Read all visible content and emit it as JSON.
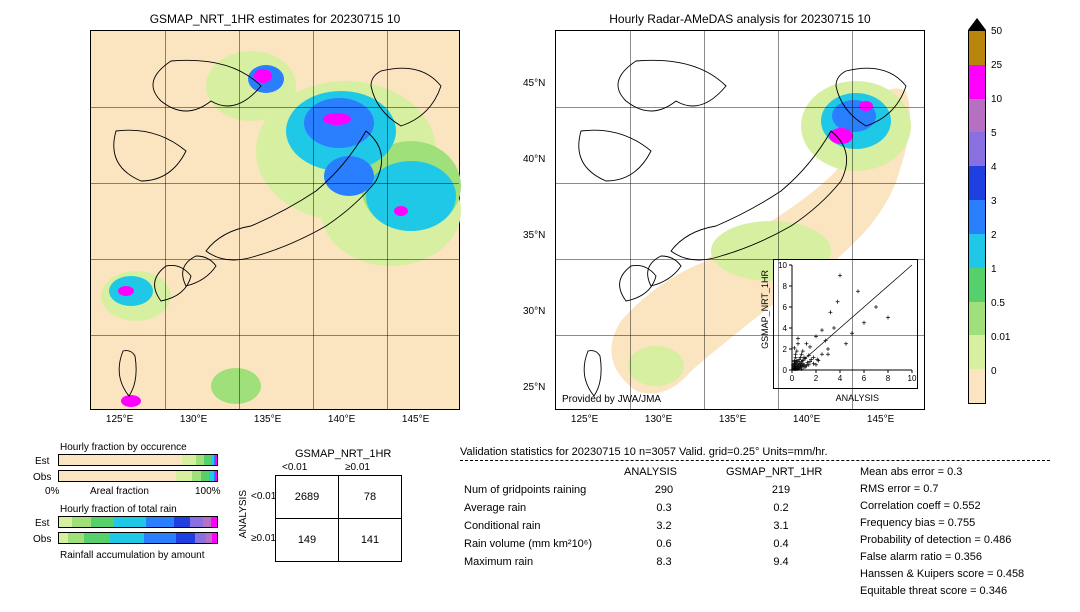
{
  "date": "20230715 10",
  "left_title": "GSMAP_NRT_1HR estimates for 20230715 10",
  "right_title": "Hourly Radar-AMeDAS analysis for 20230715 10",
  "provided_by": "Provided by JWA/JMA",
  "map": {
    "lat_ticks": [
      "25°N",
      "30°N",
      "35°N",
      "40°N",
      "45°N"
    ],
    "lon_ticks": [
      "125°E",
      "130°E",
      "135°E",
      "140°E",
      "145°E"
    ],
    "bg_color": "#fae5c0",
    "grid_color": "#606060"
  },
  "colorbar": {
    "segments": [
      {
        "color": "#b8860b",
        "h": 34
      },
      {
        "color": "#ff00ff",
        "h": 34
      },
      {
        "color": "#b76fc1",
        "h": 34
      },
      {
        "color": "#8a6fe0",
        "h": 34
      },
      {
        "color": "#1f3fe0",
        "h": 34
      },
      {
        "color": "#2a7fff",
        "h": 34
      },
      {
        "color": "#20c8e8",
        "h": 34
      },
      {
        "color": "#55d06a",
        "h": 34
      },
      {
        "color": "#9fe07a",
        "h": 34
      },
      {
        "color": "#d7efa0",
        "h": 34
      },
      {
        "color": "#fae5c0",
        "h": 34
      }
    ],
    "ticks": [
      "50",
      "25",
      "10",
      "5",
      "4",
      "3",
      "2",
      "1",
      "0.5",
      "0.01",
      "0"
    ],
    "arrow_top_color": "#000000"
  },
  "scatter": {
    "xlabel": "ANALYSIS",
    "ylabel": "GSMAP_NRT_1HR",
    "ticks": [
      "0",
      "2",
      "4",
      "6",
      "8",
      "10"
    ],
    "max": 10,
    "points": [
      [
        0.1,
        0.1
      ],
      [
        0.2,
        0.3
      ],
      [
        0.3,
        0.1
      ],
      [
        0.1,
        0.5
      ],
      [
        0.5,
        0.2
      ],
      [
        0.2,
        0.9
      ],
      [
        0.9,
        0.4
      ],
      [
        0.4,
        0.2
      ],
      [
        0.6,
        0.6
      ],
      [
        0.8,
        0.1
      ],
      [
        0.3,
        1.5
      ],
      [
        1.0,
        0.3
      ],
      [
        0.2,
        2.1
      ],
      [
        1.4,
        0.5
      ],
      [
        0.5,
        0.8
      ],
      [
        0.1,
        0.2
      ],
      [
        0.7,
        0.3
      ],
      [
        0.2,
        0.1
      ],
      [
        0.9,
        0.9
      ],
      [
        1.2,
        0.4
      ],
      [
        0.4,
        1.8
      ],
      [
        1.8,
        0.6
      ],
      [
        0.6,
        0.4
      ],
      [
        2.1,
        1.0
      ],
      [
        0.3,
        0.2
      ],
      [
        0.8,
        1.5
      ],
      [
        1.5,
        0.8
      ],
      [
        0.2,
        0.4
      ],
      [
        0.5,
        0.1
      ],
      [
        1.0,
        1.2
      ],
      [
        1.2,
        2.5
      ],
      [
        2.5,
        1.5
      ],
      [
        0.4,
        0.6
      ],
      [
        0.6,
        0.2
      ],
      [
        3.0,
        2.0
      ],
      [
        2.0,
        3.2
      ],
      [
        0.7,
        0.5
      ],
      [
        0.3,
        0.7
      ],
      [
        4.0,
        9.0
      ],
      [
        1.8,
        1.2
      ],
      [
        0.5,
        3.0
      ],
      [
        3.5,
        4.0
      ],
      [
        0.2,
        0.8
      ],
      [
        0.9,
        0.6
      ],
      [
        5.0,
        3.5
      ],
      [
        1.5,
        2.2
      ],
      [
        2.2,
        0.9
      ],
      [
        0.4,
        0.3
      ],
      [
        6.0,
        4.5
      ],
      [
        3.0,
        1.5
      ],
      [
        0.8,
        0.4
      ],
      [
        1.0,
        0.5
      ],
      [
        7.0,
        6.0
      ],
      [
        0.6,
        1.0
      ],
      [
        8.0,
        5.0
      ],
      [
        1.3,
        0.7
      ],
      [
        0.3,
        0.5
      ],
      [
        2.8,
        2.8
      ],
      [
        0.7,
        1.2
      ],
      [
        4.5,
        2.5
      ],
      [
        0.2,
        0.6
      ],
      [
        1.6,
        1.0
      ],
      [
        0.5,
        0.4
      ],
      [
        3.2,
        5.5
      ],
      [
        0.9,
        1.8
      ],
      [
        2.0,
        0.5
      ],
      [
        0.4,
        0.9
      ],
      [
        5.5,
        7.5
      ],
      [
        1.1,
        0.3
      ],
      [
        0.3,
        1.2
      ],
      [
        0.1,
        0.4
      ],
      [
        0.4,
        0.1
      ],
      [
        0.6,
        0.3
      ],
      [
        0.2,
        0.2
      ],
      [
        0.8,
        0.8
      ],
      [
        1.1,
        1.1
      ],
      [
        1.4,
        1.4
      ],
      [
        2.5,
        3.8
      ],
      [
        0.5,
        2.5
      ],
      [
        3.8,
        6.5
      ]
    ]
  },
  "fraction_bars": {
    "occurrence_title": "Hourly fraction by occurence",
    "totalrain_title": "Hourly fraction of total rain",
    "accum_title": "Rainfall accumulation by amount",
    "areal_label_left": "0%",
    "areal_label_right": "100%",
    "areal_label_center": "Areal fraction",
    "est_label": "Est",
    "obs_label": "Obs",
    "occurrence_est": [
      {
        "color": "#fae5c0",
        "w": 78
      },
      {
        "color": "#d7efa0",
        "w": 9
      },
      {
        "color": "#9fe07a",
        "w": 5
      },
      {
        "color": "#55d06a",
        "w": 4
      },
      {
        "color": "#20c8e8",
        "w": 2
      },
      {
        "color": "#2a7fff",
        "w": 1
      },
      {
        "color": "#ff00ff",
        "w": 1
      }
    ],
    "occurrence_obs": [
      {
        "color": "#fae5c0",
        "w": 74
      },
      {
        "color": "#d7efa0",
        "w": 10
      },
      {
        "color": "#9fe07a",
        "w": 6
      },
      {
        "color": "#55d06a",
        "w": 5
      },
      {
        "color": "#20c8e8",
        "w": 3
      },
      {
        "color": "#2a7fff",
        "w": 1
      },
      {
        "color": "#ff00ff",
        "w": 1
      }
    ],
    "totalrain_est": [
      {
        "color": "#d7efa0",
        "w": 8
      },
      {
        "color": "#9fe07a",
        "w": 12
      },
      {
        "color": "#55d06a",
        "w": 15
      },
      {
        "color": "#20c8e8",
        "w": 20
      },
      {
        "color": "#2a7fff",
        "w": 18
      },
      {
        "color": "#1f3fe0",
        "w": 10
      },
      {
        "color": "#8a6fe0",
        "w": 8
      },
      {
        "color": "#b76fc1",
        "w": 5
      },
      {
        "color": "#ff00ff",
        "w": 4
      }
    ],
    "totalrain_obs": [
      {
        "color": "#d7efa0",
        "w": 6
      },
      {
        "color": "#9fe07a",
        "w": 10
      },
      {
        "color": "#55d06a",
        "w": 16
      },
      {
        "color": "#20c8e8",
        "w": 22
      },
      {
        "color": "#2a7fff",
        "w": 20
      },
      {
        "color": "#1f3fe0",
        "w": 12
      },
      {
        "color": "#8a6fe0",
        "w": 7
      },
      {
        "color": "#b76fc1",
        "w": 4
      },
      {
        "color": "#ff00ff",
        "w": 3
      }
    ]
  },
  "contingency": {
    "col_header": "GSMAP_NRT_1HR",
    "row_header": "ANALYSIS",
    "col_labels": [
      "<0.01",
      "≥0.01"
    ],
    "row_labels": [
      "<0.01",
      "≥0.01"
    ],
    "cells": [
      [
        "2689",
        "78"
      ],
      [
        "149",
        "141"
      ]
    ]
  },
  "validation": {
    "header": "Validation statistics for 20230715 10  n=3057 Valid. grid=0.25° Units=mm/hr.",
    "col_headers": [
      "ANALYSIS",
      "GSMAP_NRT_1HR"
    ],
    "rows": [
      {
        "label": "Num of gridpoints raining",
        "a": "290",
        "b": "219"
      },
      {
        "label": "Average rain",
        "a": "0.3",
        "b": "0.2"
      },
      {
        "label": "Conditional rain",
        "a": "3.2",
        "b": "3.1"
      },
      {
        "label": "Rain volume (mm km²10⁶)",
        "a": "0.6",
        "b": "0.4"
      },
      {
        "label": "Maximum rain",
        "a": "8.3",
        "b": "9.4"
      }
    ],
    "stats": [
      {
        "label": "Mean abs error =",
        "v": "0.3"
      },
      {
        "label": "RMS error =",
        "v": "0.7"
      },
      {
        "label": "Correlation coeff =",
        "v": "0.552"
      },
      {
        "label": "Frequency bias =",
        "v": "0.755"
      },
      {
        "label": "Probability of detection =",
        "v": "0.486"
      },
      {
        "label": "False alarm ratio =",
        "v": "0.356"
      },
      {
        "label": "Hanssen & Kuipers score =",
        "v": "0.458"
      },
      {
        "label": "Equitable threat score =",
        "v": "0.346"
      }
    ]
  }
}
